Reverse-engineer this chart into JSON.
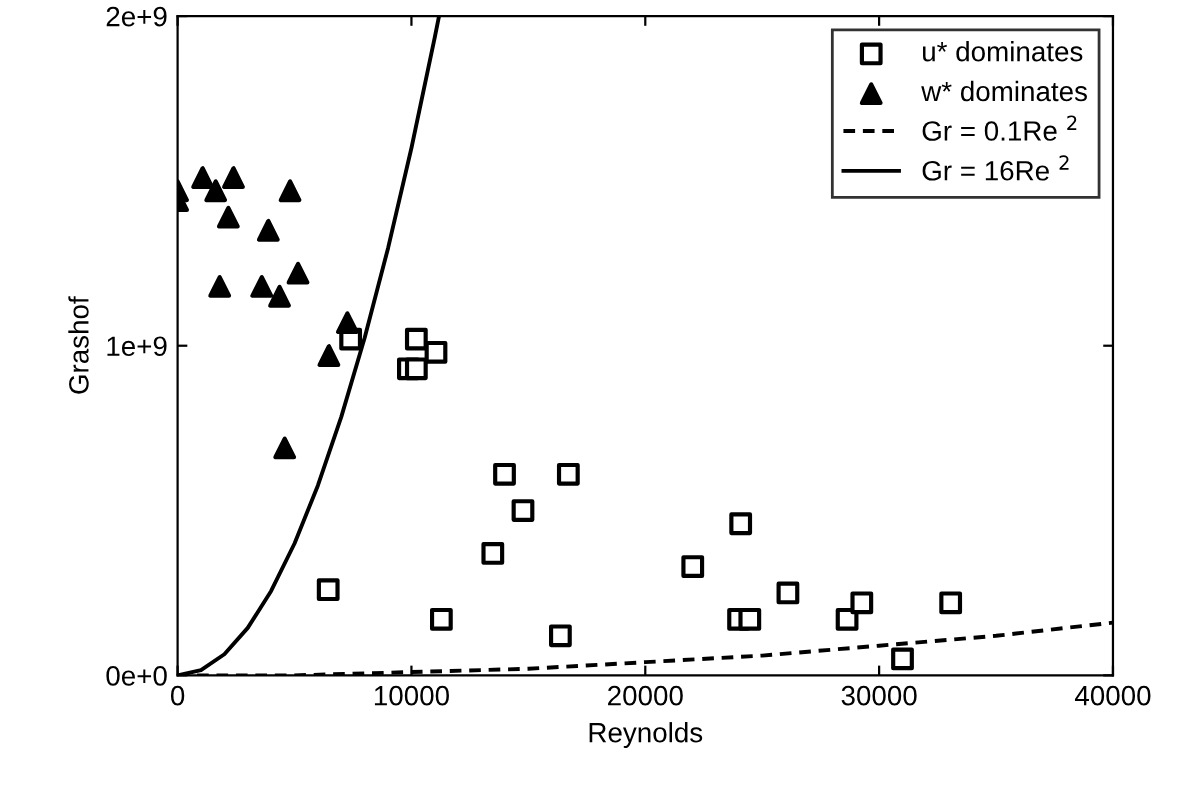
{
  "chart_data": {
    "type": "scatter",
    "xlabel": "Reynolds",
    "ylabel": "Grashof",
    "xlim": [
      0,
      40000
    ],
    "ylim": [
      0,
      2000000000
    ],
    "xticks": [
      0,
      10000,
      20000,
      30000,
      40000
    ],
    "yticks": [
      {
        "value": 0,
        "label": "0e+0"
      },
      {
        "value": 1000000000,
        "label": "1e+9"
      },
      {
        "value": 2000000000,
        "label": "2e+9"
      }
    ],
    "grid": false,
    "legend": "top right",
    "series": [
      {
        "name": "u* dominates",
        "marker": "square",
        "color": "#000000",
        "x": [
          6440,
          7400,
          10210,
          11050,
          9870,
          10210,
          13980,
          16710,
          14770,
          13480,
          11280,
          16370,
          24080,
          22030,
          26100,
          23990,
          24470,
          28630,
          29260,
          33060,
          31000
        ],
        "values": [
          260000000,
          1020000000,
          1020000000,
          980000000,
          930000000,
          930000000,
          610000000,
          610000000,
          500000000,
          370000000,
          170000000,
          120000000,
          460000000,
          330000000,
          250000000,
          170000000,
          170000000,
          170000000,
          220000000,
          220000000,
          50000000
        ]
      },
      {
        "name": "w* dominates",
        "marker": "triangle",
        "color": "#000000",
        "x": [
          0,
          0,
          1070,
          2390,
          1630,
          4810,
          2170,
          3880,
          1800,
          3600,
          4360,
          5150,
          7260,
          6470,
          4580
        ],
        "values": [
          1470000000,
          1440000000,
          1510000000,
          1510000000,
          1470000000,
          1470000000,
          1390000000,
          1350000000,
          1180000000,
          1180000000,
          1150000000,
          1220000000,
          1070000000,
          970000000,
          690000000
        ]
      },
      {
        "name": "Gr = 0.1Re $^{2}$",
        "type": "line",
        "line_style": "dashed",
        "marker": "none",
        "color": "#000000",
        "x": [
          0,
          5000,
          10000,
          15000,
          20000,
          25000,
          30000,
          35000,
          40000
        ],
        "values": [
          0,
          0,
          10000000,
          20000000,
          40000000,
          60000000,
          90000000,
          120000000,
          160000000
        ]
      },
      {
        "name": "Gr = 16Re $^{2}$",
        "type": "line",
        "line_style": "solid",
        "marker": "none",
        "color": "#000000",
        "x": [
          0,
          1000,
          2000,
          3000,
          4000,
          5000,
          6000,
          7000,
          8000,
          9000,
          10000,
          11000,
          11180
        ],
        "values": [
          0,
          16000000,
          64000000,
          144000000,
          256000000,
          400000000,
          576000000,
          784000000,
          1024000000,
          1296000000,
          1600000000,
          1936000000,
          2000000000
        ]
      }
    ]
  }
}
